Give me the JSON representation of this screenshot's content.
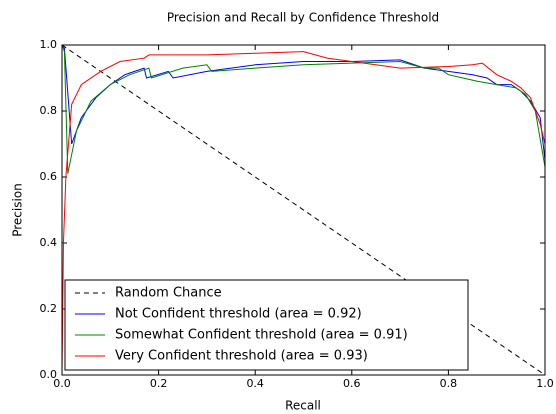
{
  "chart_data": {
    "type": "line",
    "title": "Precision and Recall by Confidence Threshold",
    "xlabel": "Recall",
    "ylabel": "Precision",
    "xlim": [
      0,
      1
    ],
    "ylim": [
      0,
      1
    ],
    "xticks": [
      {
        "value": 0,
        "label": "0.0"
      },
      0.2,
      0.4,
      0.6,
      0.8,
      {
        "value": 1,
        "label": "1.0"
      }
    ],
    "yticks": [
      {
        "value": 0,
        "label": "0.0"
      },
      0.2,
      0.4,
      0.6,
      0.8,
      {
        "value": 1,
        "label": "1.0"
      }
    ],
    "legend": "lower left",
    "series": [
      {
        "name": "Random Chance",
        "color": "#000000",
        "dashed": true,
        "x": [
          0,
          1
        ],
        "values": [
          1,
          0
        ]
      },
      {
        "name": "Not Confident threshold (area = 0.92)",
        "color": "#0000ff",
        "x": [
          0,
          0.005,
          0.02,
          0.04,
          0.07,
          0.1,
          0.13,
          0.17,
          0.175,
          0.22,
          0.23,
          0.3,
          0.4,
          0.5,
          0.6,
          0.7,
          0.75,
          0.8,
          0.85,
          0.88,
          0.9,
          0.93,
          0.95,
          0.97,
          0.99,
          1.0
        ],
        "values": [
          1.0,
          0.99,
          0.7,
          0.78,
          0.84,
          0.88,
          0.91,
          0.93,
          0.9,
          0.92,
          0.9,
          0.92,
          0.94,
          0.95,
          0.95,
          0.955,
          0.93,
          0.92,
          0.91,
          0.9,
          0.88,
          0.88,
          0.86,
          0.83,
          0.78,
          0.65
        ]
      },
      {
        "name": "Somewhat Confident threshold (area = 0.91)",
        "color": "#008000",
        "x": [
          0,
          0.005,
          0.012,
          0.03,
          0.06,
          0.1,
          0.14,
          0.18,
          0.185,
          0.25,
          0.3,
          0.31,
          0.4,
          0.5,
          0.6,
          0.7,
          0.75,
          0.78,
          0.8,
          0.83,
          0.86,
          0.9,
          0.94,
          0.96,
          0.98,
          1.0
        ],
        "values": [
          1.0,
          0.98,
          0.61,
          0.74,
          0.83,
          0.88,
          0.91,
          0.93,
          0.9,
          0.93,
          0.94,
          0.92,
          0.93,
          0.94,
          0.945,
          0.95,
          0.93,
          0.93,
          0.91,
          0.9,
          0.89,
          0.88,
          0.87,
          0.85,
          0.8,
          0.63
        ]
      },
      {
        "name": "Very Confident threshold (area = 0.93)",
        "color": "#ff0000",
        "x": [
          0,
          0.003,
          0.008,
          0.02,
          0.04,
          0.08,
          0.12,
          0.17,
          0.18,
          0.3,
          0.4,
          0.5,
          0.55,
          0.6,
          0.7,
          0.8,
          0.85,
          0.87,
          0.9,
          0.93,
          0.95,
          0.97,
          0.99,
          1.0
        ],
        "values": [
          0.0,
          0.4,
          0.6,
          0.82,
          0.88,
          0.92,
          0.95,
          0.96,
          0.97,
          0.97,
          0.975,
          0.98,
          0.96,
          0.95,
          0.93,
          0.935,
          0.94,
          0.945,
          0.91,
          0.89,
          0.87,
          0.84,
          0.76,
          0.7
        ]
      }
    ]
  }
}
